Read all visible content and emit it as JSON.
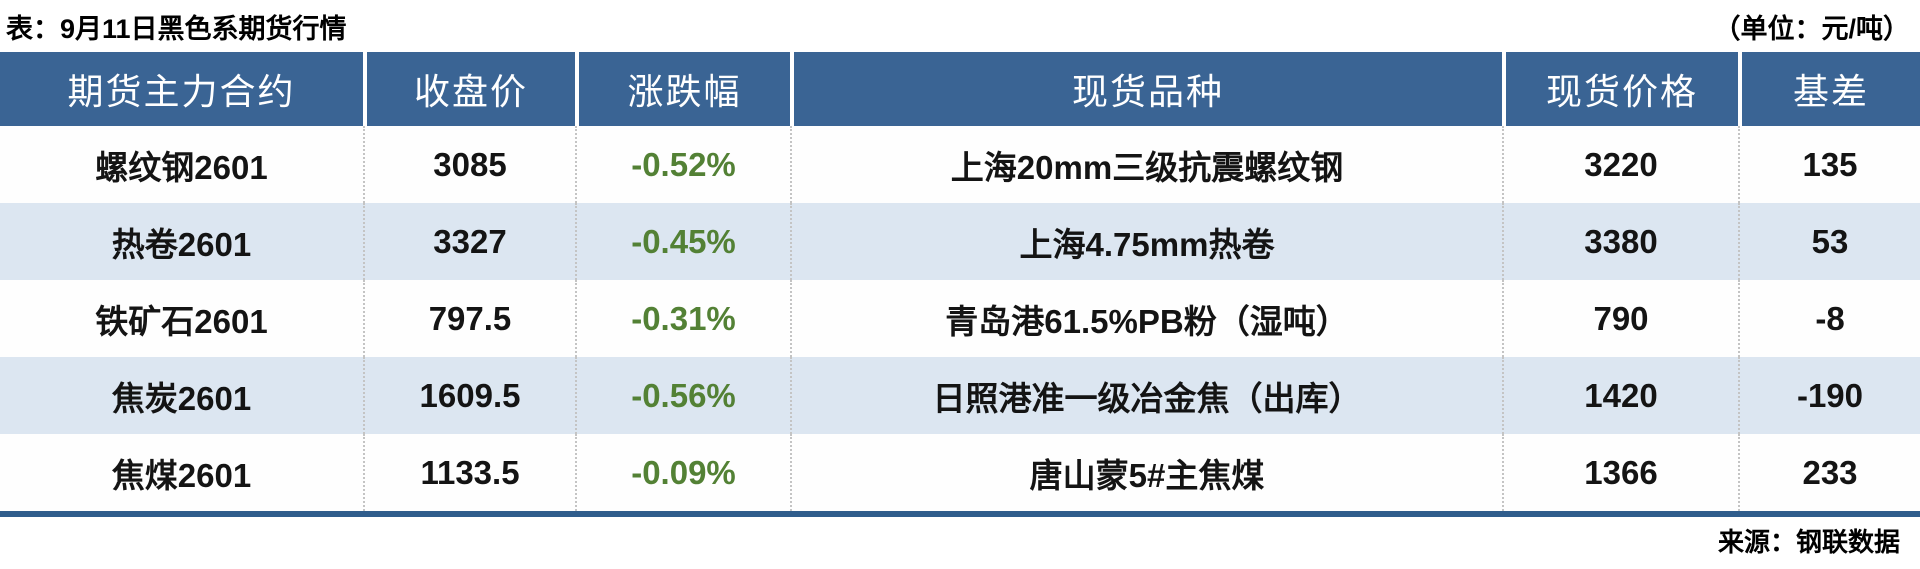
{
  "title": "表：9月11日黑色系期货行情",
  "unit_label": "（单位：元/吨）",
  "source_label": "来源：钢联数据",
  "colors": {
    "header_bg": "#3a6494",
    "row_alt_bg": "#dce6f1",
    "change_green": "#538135",
    "bottom_rule": "#2f5d8c",
    "separator_dashed": "#c4c4c4"
  },
  "chart_data": {
    "type": "table",
    "title": "9月11日黑色系期货行情",
    "unit": "元/吨",
    "source": "钢联数据",
    "columns": [
      "期货主力合约",
      "收盘价",
      "涨跌幅",
      "现货品种",
      "现货价格",
      "基差"
    ],
    "rows": [
      [
        "螺纹钢2601",
        "3085",
        "-0.52%",
        "上海20mm三级抗震螺纹钢",
        "3220",
        "135"
      ],
      [
        "热卷2601",
        "3327",
        "-0.45%",
        "上海4.75mm热卷",
        "3380",
        "53"
      ],
      [
        "铁矿石2601",
        "797.5",
        "-0.31%",
        "青岛港61.5%PB粉（湿吨）",
        "790",
        "-8"
      ],
      [
        "焦炭2601",
        "1609.5",
        "-0.56%",
        "日照港准一级冶金焦（出库）",
        "1420",
        "-190"
      ],
      [
        "焦煤2601",
        "1133.5",
        "-0.09%",
        "唐山蒙5#主焦煤",
        "1366",
        "233"
      ]
    ]
  }
}
